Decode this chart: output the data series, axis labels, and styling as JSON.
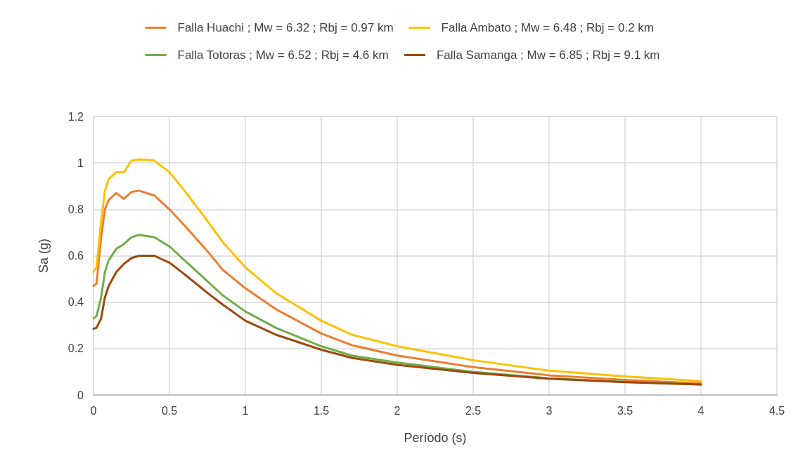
{
  "chart_data": {
    "type": "line",
    "xlabel": "Período (s)",
    "ylabel": "Sa (g)",
    "x": [
      0,
      0.02,
      0.05,
      0.075,
      0.1,
      0.15,
      0.2,
      0.25,
      0.3,
      0.4,
      0.5,
      0.6,
      0.75,
      0.85,
      1,
      1.2,
      1.5,
      1.7,
      2,
      2.5,
      3,
      3.5,
      4
    ],
    "series": [
      {
        "name": "Falla Huachi ; Mw = 6.32 ; Rbj = 0.97 km",
        "color": "#ed7d31",
        "values": [
          0.47,
          0.48,
          0.68,
          0.8,
          0.84,
          0.87,
          0.845,
          0.875,
          0.88,
          0.86,
          0.8,
          0.73,
          0.62,
          0.54,
          0.46,
          0.37,
          0.265,
          0.215,
          0.17,
          0.12,
          0.085,
          0.065,
          0.05
        ]
      },
      {
        "name": "Falla Ambato ; Mw = 6.48 ; Rbj = 0.2 km",
        "color": "#ffc000",
        "values": [
          0.53,
          0.55,
          0.75,
          0.88,
          0.93,
          0.96,
          0.96,
          1.01,
          1.015,
          1.01,
          0.96,
          0.88,
          0.75,
          0.66,
          0.55,
          0.44,
          0.32,
          0.26,
          0.21,
          0.15,
          0.105,
          0.08,
          0.06
        ]
      },
      {
        "name": "Falla Totoras ; Mw = 6.52 ; Rbj = 4.6 km",
        "color": "#70ad47",
        "values": [
          0.33,
          0.34,
          0.42,
          0.53,
          0.58,
          0.63,
          0.65,
          0.68,
          0.69,
          0.68,
          0.64,
          0.58,
          0.49,
          0.43,
          0.36,
          0.29,
          0.21,
          0.17,
          0.14,
          0.1,
          0.072,
          0.057,
          0.045
        ]
      },
      {
        "name": "Falla Samanga ; Mw = 6.85 ; Rbj = 9.1 km",
        "color": "#9e480e",
        "values": [
          0.285,
          0.29,
          0.33,
          0.42,
          0.47,
          0.53,
          0.565,
          0.59,
          0.6,
          0.6,
          0.57,
          0.52,
          0.44,
          0.39,
          0.32,
          0.26,
          0.195,
          0.16,
          0.13,
          0.095,
          0.07,
          0.055,
          0.045
        ]
      }
    ],
    "xlim": [
      0,
      4.5
    ],
    "xticks": [
      0,
      0.5,
      1,
      1.5,
      2,
      2.5,
      3,
      3.5,
      4,
      4.5
    ],
    "ylim": [
      0,
      1.2
    ],
    "yticks": [
      0,
      0.2,
      0.4,
      0.6,
      0.8,
      1,
      1.2
    ],
    "grid": true,
    "legend": "top",
    "marker": "none",
    "line_style": "solid"
  }
}
